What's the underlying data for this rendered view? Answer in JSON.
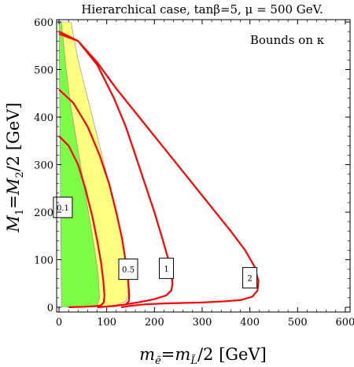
{
  "chart_data": {
    "type": "line",
    "title": "Hierarchical case, tanβ=5, μ = 500 GeV.",
    "annotation": "Bounds on κ",
    "xlabel": "mᴇ̃=mʟ̃/2  [GeV]",
    "xlabel_parts": {
      "m": "m",
      "sub1": "ẽ",
      "eq": "=",
      "m2": "m",
      "sub2": "L̃",
      "rest": "/2  [GeV]"
    },
    "ylabel": "M₁=M₂/2  [GeV]",
    "ylabel_parts": {
      "m1": "M",
      "sub1": "1",
      "eq": "=",
      "m2": "M",
      "sub2": "2",
      "rest": "/2  [GeV]"
    },
    "xlim": [
      -5,
      610
    ],
    "ylim": [
      -10,
      605
    ],
    "xticks": [
      "0",
      "100",
      "200",
      "300",
      "400",
      "500",
      "600"
    ],
    "yticks": [
      "0",
      "100",
      "200",
      "300",
      "400",
      "500",
      "600"
    ],
    "colors": {
      "green": "#7cfc45",
      "yellow": "#ffff80",
      "curve": "#ff0000",
      "region_edge": "#888888"
    },
    "regions": [
      {
        "name": "yellow-band",
        "x": [
          5,
          25,
          40,
          55,
          70,
          85,
          100,
          115,
          128,
          138,
          143,
          145,
          140,
          120,
          95,
          70,
          40,
          15,
          5
        ],
        "y": [
          600,
          600,
          520,
          460,
          400,
          340,
          280,
          220,
          160,
          110,
          70,
          30,
          12,
          5,
          2,
          1,
          1,
          1,
          600
        ]
      },
      {
        "name": "green-region",
        "x": [
          0,
          5,
          15,
          25,
          35,
          45,
          55,
          65,
          75,
          82,
          85,
          80,
          60,
          30,
          5,
          0
        ],
        "y": [
          600,
          600,
          500,
          420,
          360,
          300,
          240,
          180,
          120,
          70,
          20,
          5,
          2,
          1,
          1,
          600
        ]
      }
    ],
    "series": [
      {
        "label": "0.1",
        "x": [
          0,
          20,
          40,
          55,
          70,
          80,
          88,
          93,
          95,
          94,
          88,
          75,
          55,
          35,
          20
        ],
        "y": [
          360,
          340,
          300,
          250,
          190,
          140,
          95,
          55,
          25,
          10,
          4,
          2,
          1,
          0.5,
          0
        ]
      },
      {
        "label": "0.5",
        "x": [
          0,
          30,
          60,
          85,
          105,
          120,
          132,
          140,
          145,
          147,
          146,
          140,
          120,
          100,
          80
        ],
        "y": [
          458,
          430,
          380,
          320,
          260,
          200,
          145,
          95,
          55,
          25,
          12,
          6,
          3,
          1.5,
          0
        ]
      },
      {
        "label": "1",
        "x": [
          0,
          40,
          80,
          115,
          140,
          160,
          180,
          200,
          215,
          228,
          235,
          238,
          235,
          225,
          200,
          170,
          140,
          110
        ],
        "y": [
          580,
          560,
          510,
          440,
          380,
          320,
          260,
          200,
          150,
          105,
          75,
          50,
          35,
          25,
          17,
          11,
          6,
          2
        ]
      },
      {
        "label": "2",
        "x": [
          0,
          40,
          80,
          120,
          160,
          200,
          240,
          280,
          320,
          360,
          390,
          410,
          418,
          416,
          405,
          380,
          340,
          300,
          260,
          220,
          180,
          150,
          130
        ],
        "y": [
          575,
          560,
          515,
          460,
          410,
          360,
          310,
          260,
          210,
          160,
          120,
          85,
          55,
          35,
          22,
          15,
          12,
          10,
          9,
          8,
          6,
          3,
          0
        ]
      }
    ],
    "label_boxes": [
      {
        "text": "0.1",
        "x": 8,
        "y": 210
      },
      {
        "text": "0.5",
        "x": 145,
        "y": 80
      },
      {
        "text": "1",
        "x": 225,
        "y": 82
      },
      {
        "text": "2",
        "x": 400,
        "y": 62
      }
    ]
  }
}
